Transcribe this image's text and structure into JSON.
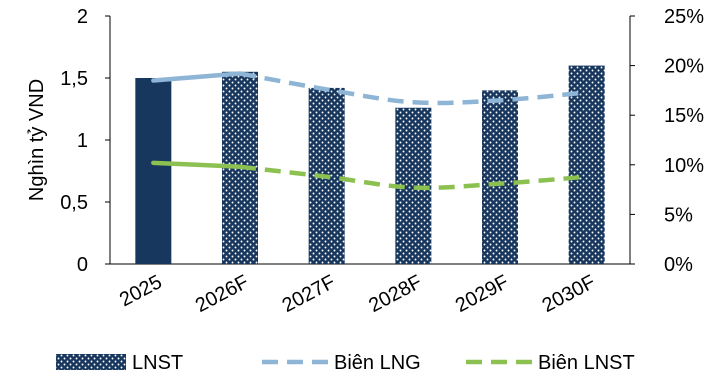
{
  "chart_data": {
    "type": "bar",
    "categories": [
      "2025",
      "2026F",
      "2027F",
      "2028F",
      "2029F",
      "2030F"
    ],
    "ylabel": "Nghìn tỷ VND",
    "ylim": [
      0,
      2
    ],
    "y_ticks": [
      "0",
      "0,5",
      "1",
      "1,5",
      "2"
    ],
    "y2lim": [
      0,
      25
    ],
    "y2_ticks": [
      "0%",
      "5%",
      "10%",
      "15%",
      "20%",
      "25%"
    ],
    "grid": false,
    "legend_position": "bottom",
    "series": [
      {
        "name": "LNST",
        "type": "bar",
        "axis": "left",
        "values": [
          1.5,
          1.55,
          1.42,
          1.26,
          1.4,
          1.6
        ],
        "color": "#17375e"
      },
      {
        "name": "Biên LNG",
        "type": "line",
        "axis": "right",
        "dash": "dashed",
        "values": [
          18.5,
          19.2,
          17.6,
          16.3,
          16.5,
          17.3
        ],
        "color": "#8eb4d6"
      },
      {
        "name": "Biên LNST",
        "type": "line",
        "axis": "right",
        "dash": "dashed",
        "values": [
          10.2,
          9.8,
          8.8,
          7.7,
          8.1,
          8.8
        ],
        "color": "#8cc152"
      }
    ]
  }
}
